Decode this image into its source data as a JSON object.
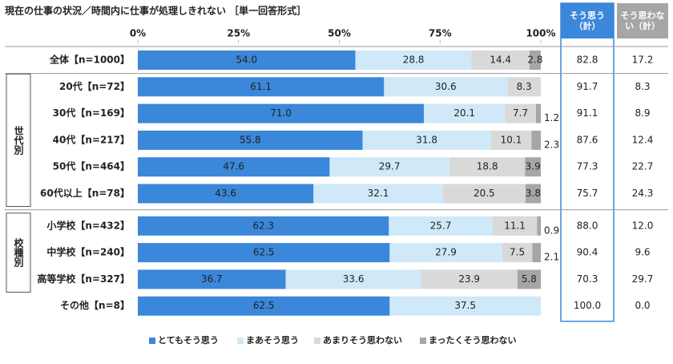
{
  "chart_data": {
    "type": "stacked_bar",
    "orientation": "horizontal",
    "title": "現在の仕事の状況／時間内に仕事が処理しきれない ［単一回答形式］",
    "categories": [
      "全体【n=1000】",
      "20代【n=72】",
      "30代【n=169】",
      "40代【n=217】",
      "50代【n=464】",
      "60代以上【n=78】",
      "小学校【n=432】",
      "中学校【n=240】",
      "高等学校【n=327】",
      "その他【n=8】"
    ],
    "group_labels": [
      null,
      "世代別",
      "世代別",
      "世代別",
      "世代別",
      "世代別",
      "校種別",
      "校種別",
      "校種別",
      null
    ],
    "xlim": [
      0,
      100
    ],
    "xticks": [
      {
        "value": 0,
        "label": "0%"
      },
      {
        "value": 25,
        "label": "25%"
      },
      {
        "value": 50,
        "label": "50%"
      },
      {
        "value": 75,
        "label": "75%"
      },
      {
        "value": 100,
        "label": "100%"
      }
    ],
    "series": [
      {
        "name": "とてもそう思う",
        "color": "#3b87d9",
        "text_color": "#ffffff",
        "values": [
          54.0,
          61.1,
          71.0,
          55.8,
          47.6,
          43.6,
          62.3,
          62.5,
          36.7,
          62.5
        ],
        "value_labels": [
          "54.0",
          "61.1",
          "71.0",
          "55.8",
          "47.6",
          "43.6",
          "62.3",
          "62.5",
          "36.7",
          "62.5"
        ]
      },
      {
        "name": "まあそう思う",
        "color": "#cfe9f8",
        "text_color": "#222222",
        "values": [
          28.8,
          30.6,
          20.1,
          31.8,
          29.7,
          32.1,
          25.7,
          27.9,
          33.6,
          37.5
        ],
        "value_labels": [
          "28.8",
          "30.6",
          "20.1",
          "31.8",
          "29.7",
          "32.1",
          "25.7",
          "27.9",
          "33.6",
          "37.5"
        ]
      },
      {
        "name": "あまりそう思わない",
        "color": "#d9d9d9",
        "text_color": "#222222",
        "values": [
          14.4,
          8.3,
          7.7,
          10.1,
          18.8,
          20.5,
          11.1,
          7.5,
          23.9,
          null
        ],
        "value_labels": [
          "14.4",
          "8.3",
          "7.7",
          "10.1",
          "18.8",
          "20.5",
          "11.1",
          "7.5",
          "23.9",
          null
        ]
      },
      {
        "name": "まったくそう思わない",
        "color": "#a6a6a6",
        "text_color": "#222222",
        "values": [
          2.8,
          null,
          1.2,
          2.3,
          3.9,
          3.8,
          0.9,
          2.1,
          5.8,
          null
        ],
        "value_labels": [
          "2.8",
          null,
          "1.2",
          "2.3",
          "3.9",
          "3.8",
          "0.9",
          "2.1",
          "5.8",
          null
        ]
      }
    ],
    "summary": [
      {
        "header": "そう思う（計）",
        "color": "#3b87d9",
        "values": [
          82.8,
          91.7,
          91.1,
          87.6,
          77.3,
          75.7,
          88.0,
          90.4,
          70.3,
          100.0
        ],
        "value_labels": [
          "82.8",
          "91.7",
          "91.1",
          "87.6",
          "77.3",
          "75.7",
          "88.0",
          "90.4",
          "70.3",
          "100.0"
        ]
      },
      {
        "header": "そう思わない（計）",
        "color": "#a6a6a6",
        "values": [
          17.2,
          8.3,
          8.9,
          12.4,
          22.7,
          24.3,
          12.0,
          9.6,
          29.7,
          0.0
        ],
        "value_labels": [
          "17.2",
          "8.3",
          "8.9",
          "12.4",
          "22.7",
          "24.3",
          "12.0",
          "9.6",
          "29.7",
          "0.0"
        ]
      }
    ]
  }
}
